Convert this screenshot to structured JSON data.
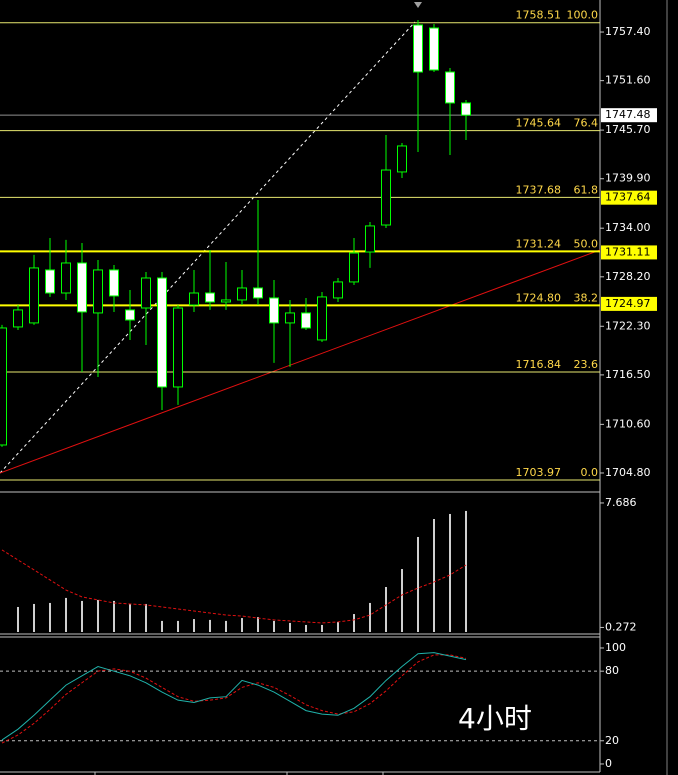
{
  "chart_data": [
    {
      "type": "candlestick",
      "open": [
        1708.14,
        1722.22,
        1722.7,
        1729.02,
        1726.27,
        1729.85,
        1723.89,
        1729.02,
        1724.25,
        1724.48,
        1728.06,
        1715.06,
        1724.84,
        1726.27,
        1725.2,
        1725.44,
        1726.87,
        1725.68,
        1722.7,
        1723.89,
        1720.67,
        1725.68,
        1727.59,
        1731.16,
        1734.38,
        1740.71,
        1758.24,
        1757.88,
        1752.63,
        1748.94
      ],
      "high": [
        1722.46,
        1724.84,
        1730.81,
        1732.83,
        1732.6,
        1732.24,
        1730.21,
        1729.61,
        1726.63,
        1728.78,
        1728.78,
        1724.84,
        1729.02,
        1731.4,
        1729.97,
        1729.02,
        1737.37,
        1727.82,
        1725.44,
        1725.68,
        1726.39,
        1728.06,
        1732.83,
        1734.74,
        1745.12,
        1744.16,
        1758.83,
        1758.36,
        1753.11,
        1749.29
      ],
      "low": [
        1707.91,
        1721.86,
        1722.46,
        1725.8,
        1725.44,
        1716.85,
        1716.25,
        1724.01,
        1720.67,
        1720.07,
        1712.32,
        1712.92,
        1724.01,
        1724.25,
        1724.25,
        1724.84,
        1724.84,
        1717.93,
        1717.45,
        1721.86,
        1720.43,
        1725.2,
        1727.23,
        1729.26,
        1734.03,
        1739.99,
        1743.09,
        1752.63,
        1742.73,
        1744.52
      ],
      "close": [
        1722.1,
        1724.25,
        1729.26,
        1726.27,
        1729.85,
        1724.01,
        1729.02,
        1725.92,
        1723.05,
        1728.06,
        1715.06,
        1724.48,
        1726.27,
        1725.2,
        1725.44,
        1726.87,
        1725.68,
        1722.7,
        1723.89,
        1722.1,
        1725.8,
        1727.59,
        1731.04,
        1734.27,
        1740.94,
        1743.81,
        1752.63,
        1752.87,
        1748.94,
        1747.48
      ],
      "ylim": [
        1702.77,
        1761.22
      ],
      "yticks": [
        {
          "value": 1757.4,
          "label": "1757.40"
        },
        {
          "value": 1751.6,
          "label": "1751.60"
        },
        {
          "value": 1745.7,
          "label": "1745.70"
        },
        {
          "value": 1739.9,
          "label": "1739.90"
        },
        {
          "value": 1734.0,
          "label": "1734.00"
        },
        {
          "value": 1728.2,
          "label": "1728.20"
        },
        {
          "value": 1722.3,
          "label": "1722.30"
        },
        {
          "value": 1716.5,
          "label": "1716.50"
        },
        {
          "value": 1710.6,
          "label": "1710.60"
        },
        {
          "value": 1704.8,
          "label": "1704.80"
        }
      ],
      "fib_levels": {
        "values": [
          1758.51,
          1745.64,
          1737.68,
          1731.24,
          1724.8,
          1716.84,
          1703.97
        ],
        "value_labels": [
          "1758.51",
          "1745.64",
          "1737.68",
          "1731.24",
          "1724.80",
          "1716.84",
          "1703.97"
        ],
        "ratios": [
          100,
          76.4,
          61.8,
          50,
          38.2,
          23.6,
          0
        ],
        "ratio_labels": [
          "100.0",
          "76.4",
          "61.8",
          "50.0",
          "38.2",
          "23.6",
          "0.0"
        ]
      },
      "price_labels": [
        1737.64,
        1731.11,
        1724.97
      ],
      "current_price": 1747.48
    },
    {
      "type": "bar",
      "values": [
        null,
        1.49,
        1.67,
        1.73,
        2.03,
        1.85,
        1.91,
        1.85,
        1.67,
        1.67,
        0.66,
        0.66,
        0.77,
        0.72,
        0.66,
        0.83,
        0.89,
        0.66,
        0.54,
        0.42,
        0.42,
        0.6,
        1.07,
        1.73,
        2.68,
        3.75,
        5.66,
        6.73,
        7.03,
        7.21
      ],
      "ma_values": [
        4.89,
        4.29,
        3.7,
        3.1,
        2.5,
        2.09,
        1.91,
        1.73,
        1.67,
        1.61,
        1.49,
        1.37,
        1.25,
        1.13,
        1.01,
        0.95,
        0.83,
        0.72,
        0.66,
        0.6,
        0.54,
        0.6,
        0.72,
        1.01,
        1.61,
        2.21,
        2.62,
        2.98,
        3.4,
        3.99
      ],
      "ylim": [
        0,
        8.16
      ],
      "yticks": [
        7.686,
        0.272
      ]
    },
    {
      "type": "line",
      "main": [
        20.7,
        30,
        42,
        55,
        68,
        76,
        84,
        80,
        76,
        70,
        62,
        55,
        53,
        57,
        58,
        72,
        68,
        62,
        54,
        46,
        43,
        42,
        48,
        58,
        72,
        84,
        95,
        96,
        93,
        90
      ],
      "signal": [
        18,
        25,
        35,
        47,
        60,
        70,
        80,
        82,
        80,
        74,
        66,
        58,
        54,
        55,
        57,
        66,
        70,
        66,
        59,
        51,
        46,
        43,
        45,
        52,
        63,
        76,
        88,
        94,
        94,
        91
      ],
      "ylim": [
        -5.2,
        108.6
      ],
      "yticks": [
        100,
        80,
        20,
        0
      ],
      "levels": [
        80,
        20
      ],
      "annotation": "4小时"
    }
  ]
}
